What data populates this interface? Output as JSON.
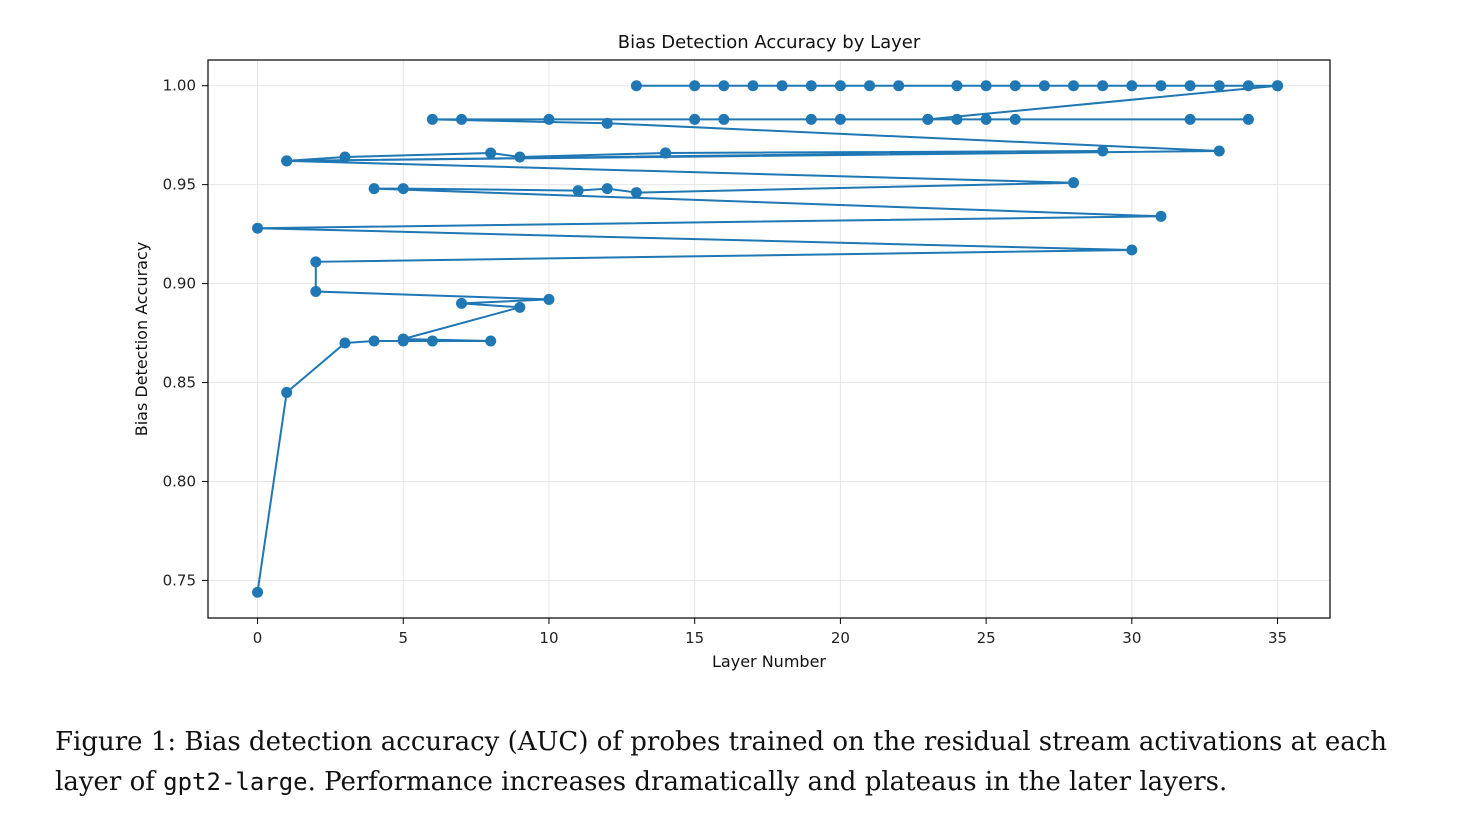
{
  "chart_data": {
    "type": "line",
    "title": "Bias Detection Accuracy by Layer",
    "xlabel": "Layer Number",
    "ylabel": "Bias Detection Accuracy",
    "xlim": [
      -1.7,
      36.8
    ],
    "ylim": [
      0.731,
      1.013
    ],
    "xticks": [
      0,
      5,
      10,
      15,
      20,
      25,
      30,
      35
    ],
    "xtick_labels": [
      "0",
      "5",
      "10",
      "15",
      "20",
      "25",
      "30",
      "35"
    ],
    "yticks": [
      0.75,
      0.8,
      0.85,
      0.9,
      0.95,
      1.0
    ],
    "ytick_labels": [
      "0.75",
      "0.80",
      "0.85",
      "0.90",
      "0.95",
      "1.00"
    ],
    "grid": true,
    "color": "#1f77b4",
    "series": [
      {
        "marker": "circle",
        "points": [
          [
            0,
            0.744
          ],
          [
            1,
            0.845
          ],
          [
            3,
            0.87
          ],
          [
            4,
            0.871
          ],
          [
            5,
            0.871
          ],
          [
            6,
            0.871
          ],
          [
            8,
            0.871
          ],
          [
            5,
            0.872
          ],
          [
            9,
            0.888
          ],
          [
            7,
            0.89
          ],
          [
            10,
            0.892
          ],
          [
            2,
            0.896
          ],
          [
            2,
            0.911
          ],
          [
            30,
            0.917
          ],
          [
            0,
            0.928
          ],
          [
            31,
            0.934
          ],
          [
            4,
            0.948
          ],
          [
            5,
            0.948
          ],
          [
            11,
            0.947
          ],
          [
            12,
            0.948
          ],
          [
            13,
            0.946
          ],
          [
            28,
            0.951
          ],
          [
            1,
            0.962
          ],
          [
            3,
            0.964
          ],
          [
            8,
            0.966
          ],
          [
            9,
            0.964
          ],
          [
            14,
            0.966
          ],
          [
            14,
            0.966
          ],
          [
            29,
            0.967
          ],
          [
            1,
            0.962
          ],
          [
            33,
            0.967
          ],
          [
            12,
            0.981
          ],
          [
            6,
            0.983
          ],
          [
            7,
            0.983
          ],
          [
            10,
            0.983
          ],
          [
            15,
            0.983
          ],
          [
            16,
            0.983
          ],
          [
            19,
            0.983
          ],
          [
            20,
            0.983
          ],
          [
            23,
            0.983
          ],
          [
            24,
            0.983
          ],
          [
            25,
            0.983
          ],
          [
            26,
            0.983
          ],
          [
            32,
            0.983
          ],
          [
            34,
            0.983
          ],
          [
            23,
            0.983
          ],
          [
            35,
            1.0
          ],
          [
            13,
            1.0
          ],
          [
            15,
            1.0
          ],
          [
            16,
            1.0
          ],
          [
            17,
            1.0
          ],
          [
            18,
            1.0
          ],
          [
            19,
            1.0
          ],
          [
            20,
            1.0
          ],
          [
            21,
            1.0
          ],
          [
            22,
            1.0
          ],
          [
            24,
            1.0
          ],
          [
            25,
            1.0
          ],
          [
            26,
            1.0
          ],
          [
            27,
            1.0
          ],
          [
            28,
            1.0
          ],
          [
            29,
            1.0
          ],
          [
            30,
            1.0
          ],
          [
            31,
            1.0
          ],
          [
            32,
            1.0
          ],
          [
            33,
            1.0
          ],
          [
            34,
            1.0
          ],
          [
            35,
            1.0
          ]
        ]
      }
    ]
  },
  "caption": {
    "prefix": "Figure 1: Bias detection accuracy (AUC) of probes trained on the residual stream activations at each layer of ",
    "model": "gpt2-large",
    "suffix": ". Performance increases dramatically and plateaus in the later layers."
  }
}
